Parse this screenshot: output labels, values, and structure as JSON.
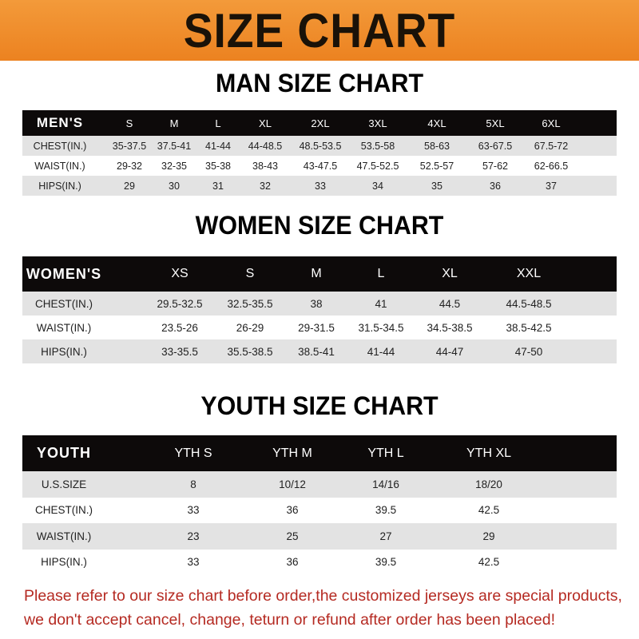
{
  "banner": {
    "title": "SIZE CHART",
    "color": "#ee8826"
  },
  "men": {
    "title": "MAN SIZE CHART",
    "headers": [
      "MEN'S",
      "S",
      "M",
      "L",
      "XL",
      "2XL",
      "3XL",
      "4XL",
      "5XL",
      "6XL"
    ],
    "rows": [
      [
        "CHEST(IN.)",
        "35-37.5",
        "37.5-41",
        "41-44",
        "44-48.5",
        "48.5-53.5",
        "53.5-58",
        "58-63",
        "63-67.5",
        "67.5-72"
      ],
      [
        "WAIST(IN.)",
        "29-32",
        "32-35",
        "35-38",
        "38-43",
        "43-47.5",
        "47.5-52.5",
        "52.5-57",
        "57-62",
        "62-66.5"
      ],
      [
        "HIPS(IN.)",
        "29",
        "30",
        "31",
        "32",
        "33",
        "34",
        "35",
        "36",
        "37"
      ]
    ]
  },
  "women": {
    "title": "WOMEN SIZE CHART",
    "headers": [
      "WOMEN'S",
      "XS",
      "S",
      "M",
      "L",
      "XL",
      "XXL"
    ],
    "rows": [
      [
        "CHEST(IN.)",
        "29.5-32.5",
        "32.5-35.5",
        "38",
        "41",
        "44.5",
        "44.5-48.5"
      ],
      [
        "WAIST(IN.)",
        "23.5-26",
        "26-29",
        "29-31.5",
        "31.5-34.5",
        "34.5-38.5",
        "38.5-42.5"
      ],
      [
        "HIPS(IN.)",
        "33-35.5",
        "35.5-38.5",
        "38.5-41",
        "41-44",
        "44-47",
        "47-50"
      ]
    ]
  },
  "youth": {
    "title": "YOUTH SIZE CHART",
    "headers": [
      "YOUTH",
      "YTH S",
      "YTH M",
      "YTH L",
      "YTH XL"
    ],
    "rows": [
      [
        "U.S.SIZE",
        "8",
        "10/12",
        "14/16",
        "18/20"
      ],
      [
        "CHEST(IN.)",
        "33",
        "36",
        "39.5",
        "42.5"
      ],
      [
        "WAIST(IN.)",
        "23",
        "25",
        "27",
        "29"
      ],
      [
        "HIPS(IN.)",
        "33",
        "36",
        "39.5",
        "42.5"
      ]
    ]
  },
  "notice": {
    "line1": "Please refer to our size chart before order,the customized jerseys are special products,",
    "line2": "we don't accept cancel, change, teturn or refund after order has been placed!",
    "color": "#b52a22"
  }
}
